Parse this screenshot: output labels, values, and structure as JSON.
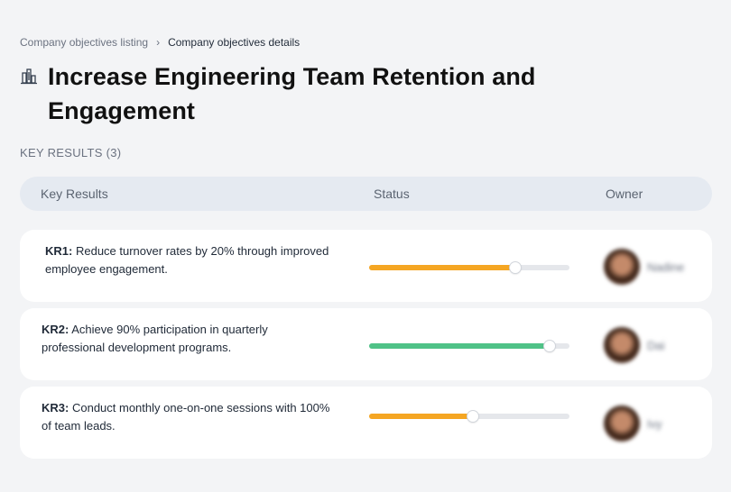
{
  "breadcrumb": {
    "parent": "Company objectives listing",
    "separator": "›",
    "current": "Company objectives details"
  },
  "objective": {
    "icon": "building-icon",
    "title": "Increase Engineering Team Retention and Engagement"
  },
  "key_results_label": "KEY RESULTS (3)",
  "table": {
    "headers": {
      "key_results": "Key Results",
      "status": "Status",
      "owner": "Owner"
    },
    "rows": [
      {
        "id": "KR1:",
        "text": "Reduce turnover rates by 20% through improved employee engagement.",
        "progress": 0.73,
        "color": "#f5a623",
        "owner": "Nadine"
      },
      {
        "id": "KR2:",
        "text": "Achieve 90% participation in quarterly professional development programs.",
        "progress": 0.9,
        "color": "#4fc287",
        "owner": "Dai"
      },
      {
        "id": "KR3:",
        "text": "Conduct monthly one-on-one sessions with 100% of team leads.",
        "progress": 0.52,
        "color": "#f5a623",
        "owner": "Ivy"
      }
    ]
  }
}
